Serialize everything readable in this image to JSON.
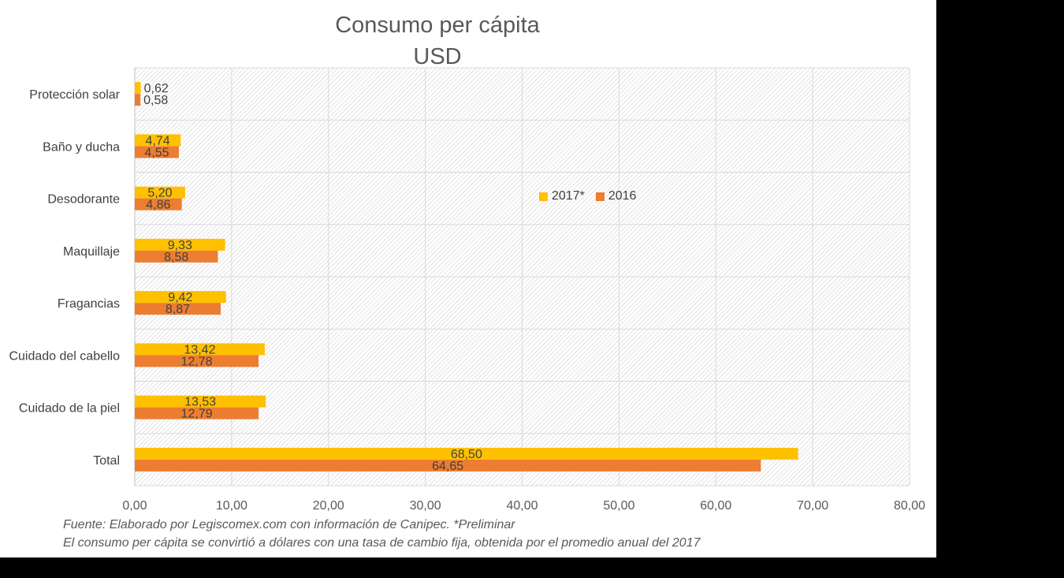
{
  "chart_data": {
    "type": "bar",
    "orientation": "horizontal",
    "title": "Consumo per cápita",
    "subtitle": "USD",
    "categories": [
      "Protección solar",
      "Baño y ducha",
      "Desodorante",
      "Maquillaje",
      "Fragancias",
      "Cuidado del cabello",
      "Cuidado de la piel",
      "Total"
    ],
    "series": [
      {
        "name": "2017*",
        "color": "#FFC000",
        "values": [
          0.62,
          4.74,
          5.2,
          9.33,
          9.42,
          13.42,
          13.53,
          68.5
        ],
        "labels": [
          "0,62",
          "4,74",
          "5,20",
          "9,33",
          "9,42",
          "13,42",
          "13,53",
          "68,50"
        ]
      },
      {
        "name": "2016",
        "color": "#ED7D31",
        "values": [
          0.58,
          4.55,
          4.86,
          8.58,
          8.87,
          12.78,
          12.79,
          64.65
        ],
        "labels": [
          "0,58",
          "4,55",
          "4,86",
          "8,58",
          "8,87",
          "12,78",
          "12,79",
          "64,65"
        ]
      }
    ],
    "xlim": [
      0,
      80
    ],
    "x_ticks": [
      0,
      10,
      20,
      30,
      40,
      50,
      60,
      70,
      80
    ],
    "x_tick_labels": [
      "0,00",
      "10,00",
      "20,00",
      "30,00",
      "40,00",
      "50,00",
      "60,00",
      "70,00",
      "80,00"
    ],
    "grid": true,
    "legend_position": "center-right inside plot"
  },
  "footnotes": [
    "Fuente: Elaborado por Legiscomex.com con información de Canipec. *Preliminar",
    "El consumo per cápita se convirtió a dólares con una tasa de cambio fija, obtenida por el promedio anual del 2017"
  ]
}
